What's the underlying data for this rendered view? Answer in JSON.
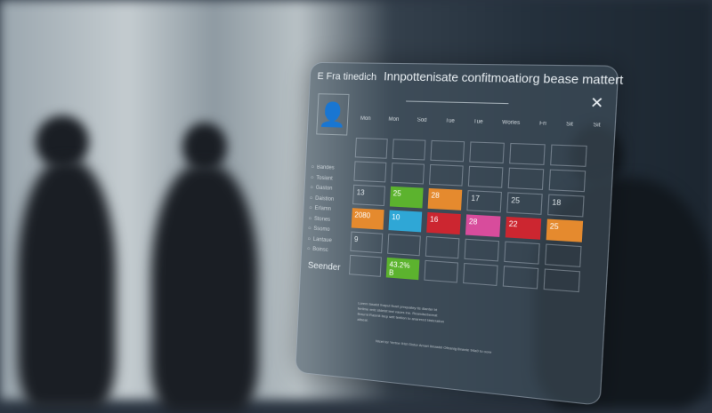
{
  "window": {
    "app_label": "E  Fra tinedich",
    "title": "Innpottenisate confitmoatiorg bease mattert",
    "close_icon": "close-icon"
  },
  "sidebar": {
    "avatar_icon": "user-icon",
    "items": [
      "Bandes",
      "Tosiant",
      "Gaston",
      "Daistion",
      "Erlamn",
      "Stones",
      "Ssomo",
      "Lantaue",
      "Boinsc"
    ],
    "footer": "Seender"
  },
  "calendar": {
    "headers": [
      "Mon",
      "Mon",
      "Sod",
      "Tue",
      "Tue",
      "Worles",
      "Fri",
      "Sit",
      "Sit"
    ],
    "rows": [
      [
        {
          "t": ""
        },
        {
          "t": ""
        },
        {
          "t": ""
        },
        {
          "t": ""
        },
        {
          "t": ""
        },
        {
          "t": ""
        }
      ],
      [
        {
          "t": ""
        },
        {
          "t": ""
        },
        {
          "t": ""
        },
        {
          "t": ""
        },
        {
          "t": ""
        },
        {
          "t": ""
        }
      ],
      [
        {
          "t": "13"
        },
        {
          "t": "25",
          "c": "#5cb32e"
        },
        {
          "t": "28",
          "c": "#e58a2e"
        },
        {
          "t": "17"
        },
        {
          "t": "25"
        },
        {
          "t": "18"
        }
      ],
      [
        {
          "t": "2080",
          "c": "#e58a2e"
        },
        {
          "t": "10",
          "c": "#2fa7d6"
        },
        {
          "t": "16",
          "c": "#cc2630"
        },
        {
          "t": "28",
          "c": "#d84c9c"
        },
        {
          "t": "22",
          "c": "#cc2630"
        },
        {
          "t": "25",
          "c": "#e58a2e"
        }
      ],
      [
        {
          "t": "9"
        },
        {
          "t": ""
        },
        {
          "t": ""
        },
        {
          "t": ""
        },
        {
          "t": ""
        },
        {
          "t": ""
        }
      ],
      [
        {
          "t": ""
        },
        {
          "t": "43.2% B",
          "c": "#5cb32e"
        },
        {
          "t": ""
        },
        {
          "t": ""
        },
        {
          "t": ""
        },
        {
          "t": ""
        }
      ]
    ]
  },
  "notes": {
    "body": "Lorem fasaist fnaput ficart prnquatey tis dianter bt fertlme entc stdeist iest vaces ine. Reandsebereat finrurnt Rasmit lsep sett tertlion to anarered bisteration aliseal.",
    "footer": "Nicet ter Yertne IHst Gistor Amart Ilmastel Ofeanig Bnanie 94a0 to oore"
  }
}
